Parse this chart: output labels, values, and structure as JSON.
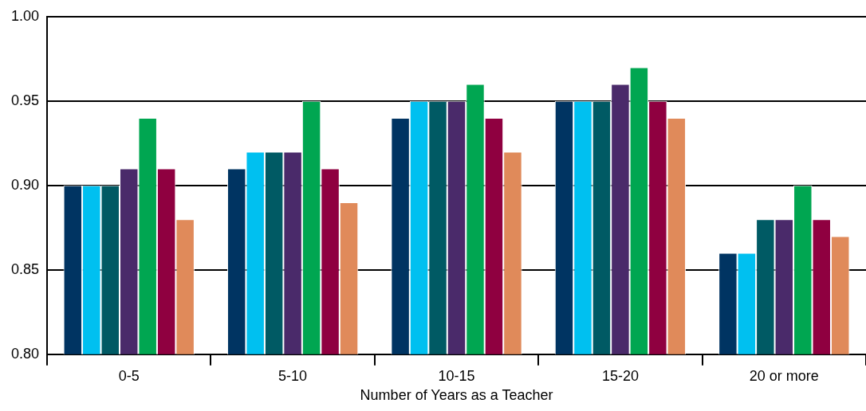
{
  "chart_data": {
    "type": "bar",
    "xlabel": "Number of Years as a Teacher",
    "categories": [
      "0-5",
      "5-10",
      "10-15",
      "15-20",
      "20 or more"
    ],
    "series": [
      {
        "color": "#003462",
        "values": [
          0.9,
          0.91,
          0.94,
          0.95,
          0.86
        ]
      },
      {
        "color": "#00c0f0",
        "values": [
          0.9,
          0.92,
          0.95,
          0.95,
          0.86
        ]
      },
      {
        "color": "#005a64",
        "values": [
          0.9,
          0.92,
          0.95,
          0.95,
          0.88
        ]
      },
      {
        "color": "#4a2a6a",
        "values": [
          0.91,
          0.92,
          0.95,
          0.96,
          0.88
        ]
      },
      {
        "color": "#00a651",
        "values": [
          0.94,
          0.95,
          0.96,
          0.97,
          0.9
        ]
      },
      {
        "color": "#8f0040",
        "values": [
          0.91,
          0.91,
          0.94,
          0.95,
          0.88
        ]
      },
      {
        "color": "#e08a5a",
        "values": [
          0.88,
          0.89,
          0.92,
          0.94,
          0.87
        ]
      }
    ],
    "ylim": [
      0.8,
      1.0
    ],
    "yticks": [
      {
        "value": 0.8,
        "label": "0.80"
      },
      {
        "value": 0.85,
        "label": "0.85"
      },
      {
        "value": 0.9,
        "label": "0.90"
      },
      {
        "value": 0.95,
        "label": "0.95"
      },
      {
        "value": 1.0,
        "label": "1.00"
      }
    ],
    "grid": "y",
    "legend": false
  }
}
